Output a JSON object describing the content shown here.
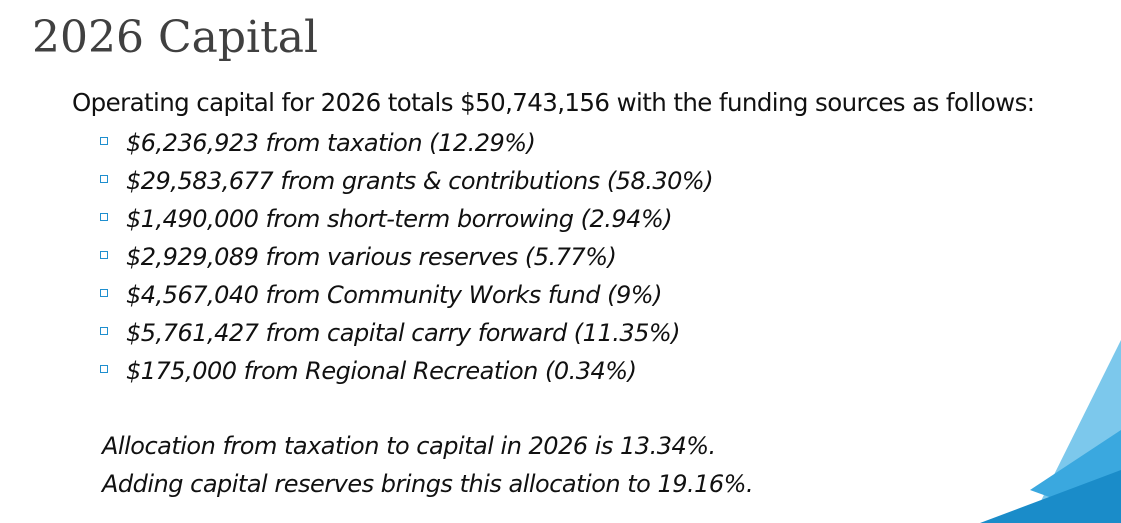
{
  "header": {
    "title": "2026 Capital"
  },
  "intro": "Operating capital for 2026 totals $50,743,156 with the funding sources as follows:",
  "items": [
    "$6,236,923 from taxation (12.29%)",
    "$29,583,677 from grants & contributions (58.30%)",
    "$1,490,000 from short-term borrowing (2.94%)",
    "$2,929,089 from various reserves (5.77%)",
    "$4,567,040 from Community Works fund (9%)",
    "$5,761,427 from capital carry forward (11.35%)",
    "$175,000 from Regional Recreation (0.34%)"
  ],
  "notes": [
    "Allocation from taxation to capital in 2026 is 13.34%.",
    "Adding capital reserves brings this allocation to 19.16%."
  ]
}
